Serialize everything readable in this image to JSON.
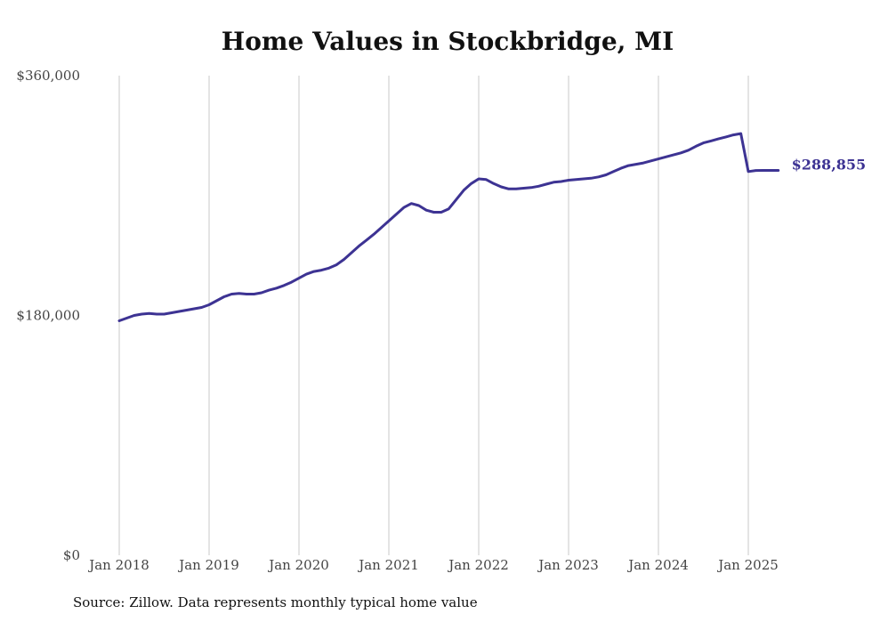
{
  "chart_data": {
    "type": "line",
    "title": "Home Values in Stockbridge, MI",
    "xlabel": "",
    "ylabel": "",
    "x_tick_labels": [
      "Jan 2018",
      "Jan 2019",
      "Jan 2020",
      "Jan 2021",
      "Jan 2022",
      "Jan 2023",
      "Jan 2024",
      "Jan 2025"
    ],
    "x_range": [
      "2018-01",
      "2025-05"
    ],
    "y_tick_labels": [
      "$0",
      "$180,000",
      "$360,000"
    ],
    "y_ticks": [
      0,
      180000,
      360000
    ],
    "ylim": [
      0,
      360000
    ],
    "grid": "vertical lines at each January",
    "line_color": "#3d3393",
    "end_label": "$288,855",
    "series": [
      {
        "x": [
          "2018-01",
          "2018-02",
          "2018-03",
          "2018-04",
          "2018-05",
          "2018-06",
          "2018-07",
          "2018-08",
          "2018-09",
          "2018-10",
          "2018-11",
          "2018-12",
          "2019-01",
          "2019-02",
          "2019-03",
          "2019-04",
          "2019-05",
          "2019-06",
          "2019-07",
          "2019-08",
          "2019-09",
          "2019-10",
          "2019-11",
          "2019-12",
          "2020-01",
          "2020-02",
          "2020-03",
          "2020-04",
          "2020-05",
          "2020-06",
          "2020-07",
          "2020-08",
          "2020-09",
          "2020-10",
          "2020-11",
          "2020-12",
          "2021-01",
          "2021-02",
          "2021-03",
          "2021-04",
          "2021-05",
          "2021-06",
          "2021-07",
          "2021-08",
          "2021-09",
          "2021-10",
          "2021-11",
          "2021-12",
          "2022-01",
          "2022-02",
          "2022-03",
          "2022-04",
          "2022-05",
          "2022-06",
          "2022-07",
          "2022-08",
          "2022-09",
          "2022-10",
          "2022-11",
          "2022-12",
          "2023-01",
          "2023-02",
          "2023-03",
          "2023-04",
          "2023-05",
          "2023-06",
          "2023-07",
          "2023-08",
          "2023-09",
          "2023-10",
          "2023-11",
          "2023-12",
          "2024-01",
          "2024-02",
          "2024-03",
          "2024-04",
          "2024-05",
          "2024-06",
          "2024-07",
          "2024-08",
          "2024-09",
          "2024-10",
          "2024-11",
          "2024-12",
          "2025-01",
          "2025-02",
          "2025-03",
          "2025-04",
          "2025-05"
        ],
        "values": [
          176000,
          178000,
          180000,
          181000,
          181500,
          181000,
          181000,
          182000,
          183000,
          184000,
          185000,
          186000,
          188000,
          191000,
          194000,
          196000,
          196500,
          196000,
          196000,
          197000,
          199000,
          200500,
          202500,
          205000,
          208000,
          211000,
          213000,
          214000,
          215500,
          218000,
          222000,
          227000,
          232000,
          236500,
          241000,
          246000,
          251000,
          256000,
          261000,
          264000,
          262500,
          259000,
          257500,
          257500,
          260000,
          267000,
          274000,
          279000,
          282500,
          282000,
          279000,
          276500,
          275000,
          275000,
          275500,
          276000,
          277000,
          278500,
          280000,
          280500,
          281500,
          282000,
          282500,
          283000,
          284000,
          285500,
          288000,
          290500,
          292500,
          293500,
          294500,
          296000,
          297500,
          299000,
          300500,
          302000,
          304000,
          307000,
          309500,
          311000,
          312500,
          314000,
          315500,
          316500,
          288000,
          288800,
          288855,
          288855,
          288855
        ]
      }
    ]
  },
  "footer": {
    "source": "Source: Zillow. Data represents monthly typical home value"
  }
}
